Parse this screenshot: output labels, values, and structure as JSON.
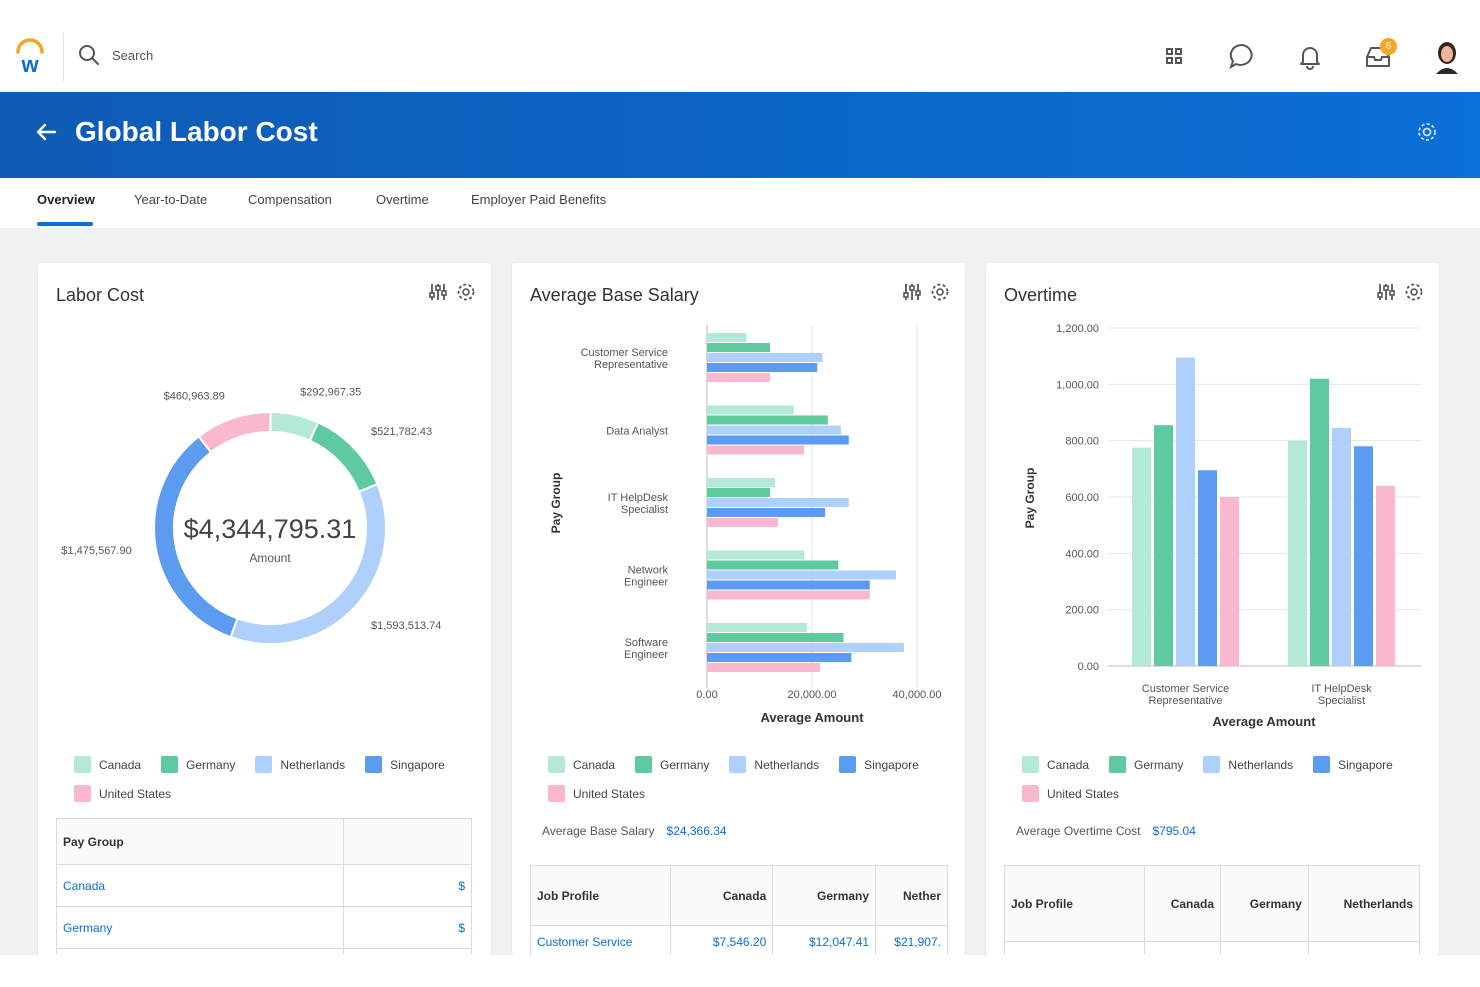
{
  "header": {
    "search_placeholder": "Search",
    "notification_count": "6"
  },
  "page": {
    "title": "Global Labor Cost"
  },
  "tabs": [
    {
      "label": "Overview"
    },
    {
      "label": "Year-to-Date"
    },
    {
      "label": "Compensation"
    },
    {
      "label": "Overtime"
    },
    {
      "label": "Employer Paid Benefits"
    }
  ],
  "colors": {
    "canada": "#b3e9d6",
    "germany": "#5fc9a0",
    "netherlands": "#afd0fa",
    "singapore": "#5b9cf0",
    "united_states": "#f9b8cf",
    "accent": "#0a6fd6"
  },
  "legend": [
    "Canada",
    "Germany",
    "Netherlands",
    "Singapore",
    "United States"
  ],
  "labor_cost": {
    "title": "Labor Cost",
    "center_value": "$4,344,795.31",
    "center_label": "Amount",
    "table_header": "Pay Group",
    "rows": [
      {
        "name": "Canada",
        "value": "$"
      },
      {
        "name": "Germany",
        "value": "$"
      }
    ]
  },
  "avg_salary": {
    "title": "Average Base Salary",
    "summary_label": "Average Base Salary",
    "summary_value": "$24,366.34",
    "table_headers": [
      "Job Profile",
      "Canada",
      "Germany",
      "Nether"
    ],
    "table_row": [
      "Customer Service",
      "$7,546.20",
      "$12,047.41",
      "$21,907."
    ]
  },
  "overtime": {
    "title": "Overtime",
    "summary_label": "Average Overtime Cost",
    "summary_value": "$795.04",
    "table_headers": [
      "Job Profile",
      "Canada",
      "Germany",
      "Netherlands"
    ]
  },
  "chart_data": [
    {
      "type": "pie",
      "title": "Labor Cost",
      "categories": [
        "Canada",
        "Germany",
        "Netherlands",
        "Singapore",
        "United States"
      ],
      "values": [
        292967.35,
        521782.43,
        1593513.74,
        1475567.9,
        460963.89
      ],
      "labels": [
        "$292,967.35",
        "$521,782.43",
        "$1,593,513.74",
        "$1,475,567.90",
        "$460,963.89"
      ]
    },
    {
      "type": "bar",
      "orientation": "horizontal",
      "title": "Average Base Salary",
      "xlabel": "Average Amount",
      "ylabel": "Pay Group",
      "xlim": [
        0,
        40000
      ],
      "xticks": [
        "0.00",
        "20,000.00",
        "40,000.00"
      ],
      "categories": [
        "Customer Service Representative",
        "Data Analyst",
        "IT HelpDesk Specialist",
        "Network Engineer",
        "Software Engineer"
      ],
      "series": [
        {
          "name": "Canada",
          "values": [
            7500,
            16500,
            13000,
            18500,
            19000
          ]
        },
        {
          "name": "Germany",
          "values": [
            12000,
            23000,
            12000,
            25000,
            26000
          ]
        },
        {
          "name": "Netherlands",
          "values": [
            22000,
            25500,
            27000,
            36000,
            37500
          ]
        },
        {
          "name": "Singapore",
          "values": [
            21000,
            27000,
            22500,
            31000,
            27500
          ]
        },
        {
          "name": "United States",
          "values": [
            12000,
            18500,
            13500,
            31000,
            21500
          ]
        }
      ]
    },
    {
      "type": "bar",
      "title": "Overtime",
      "xlabel": "Average Amount",
      "ylabel": "Pay Group",
      "ylim": [
        0,
        1200
      ],
      "yticks": [
        "0.00",
        "200.00",
        "400.00",
        "600.00",
        "800.00",
        "1,000.00",
        "1,200.00"
      ],
      "categories": [
        "Customer Service Representative",
        "IT HelpDesk Specialist"
      ],
      "series": [
        {
          "name": "Canada",
          "values": [
            775,
            800
          ]
        },
        {
          "name": "Germany",
          "values": [
            855,
            1020
          ]
        },
        {
          "name": "Netherlands",
          "values": [
            1095,
            845
          ]
        },
        {
          "name": "Singapore",
          "values": [
            695,
            780
          ]
        },
        {
          "name": "United States",
          "values": [
            600,
            640
          ]
        }
      ]
    }
  ]
}
